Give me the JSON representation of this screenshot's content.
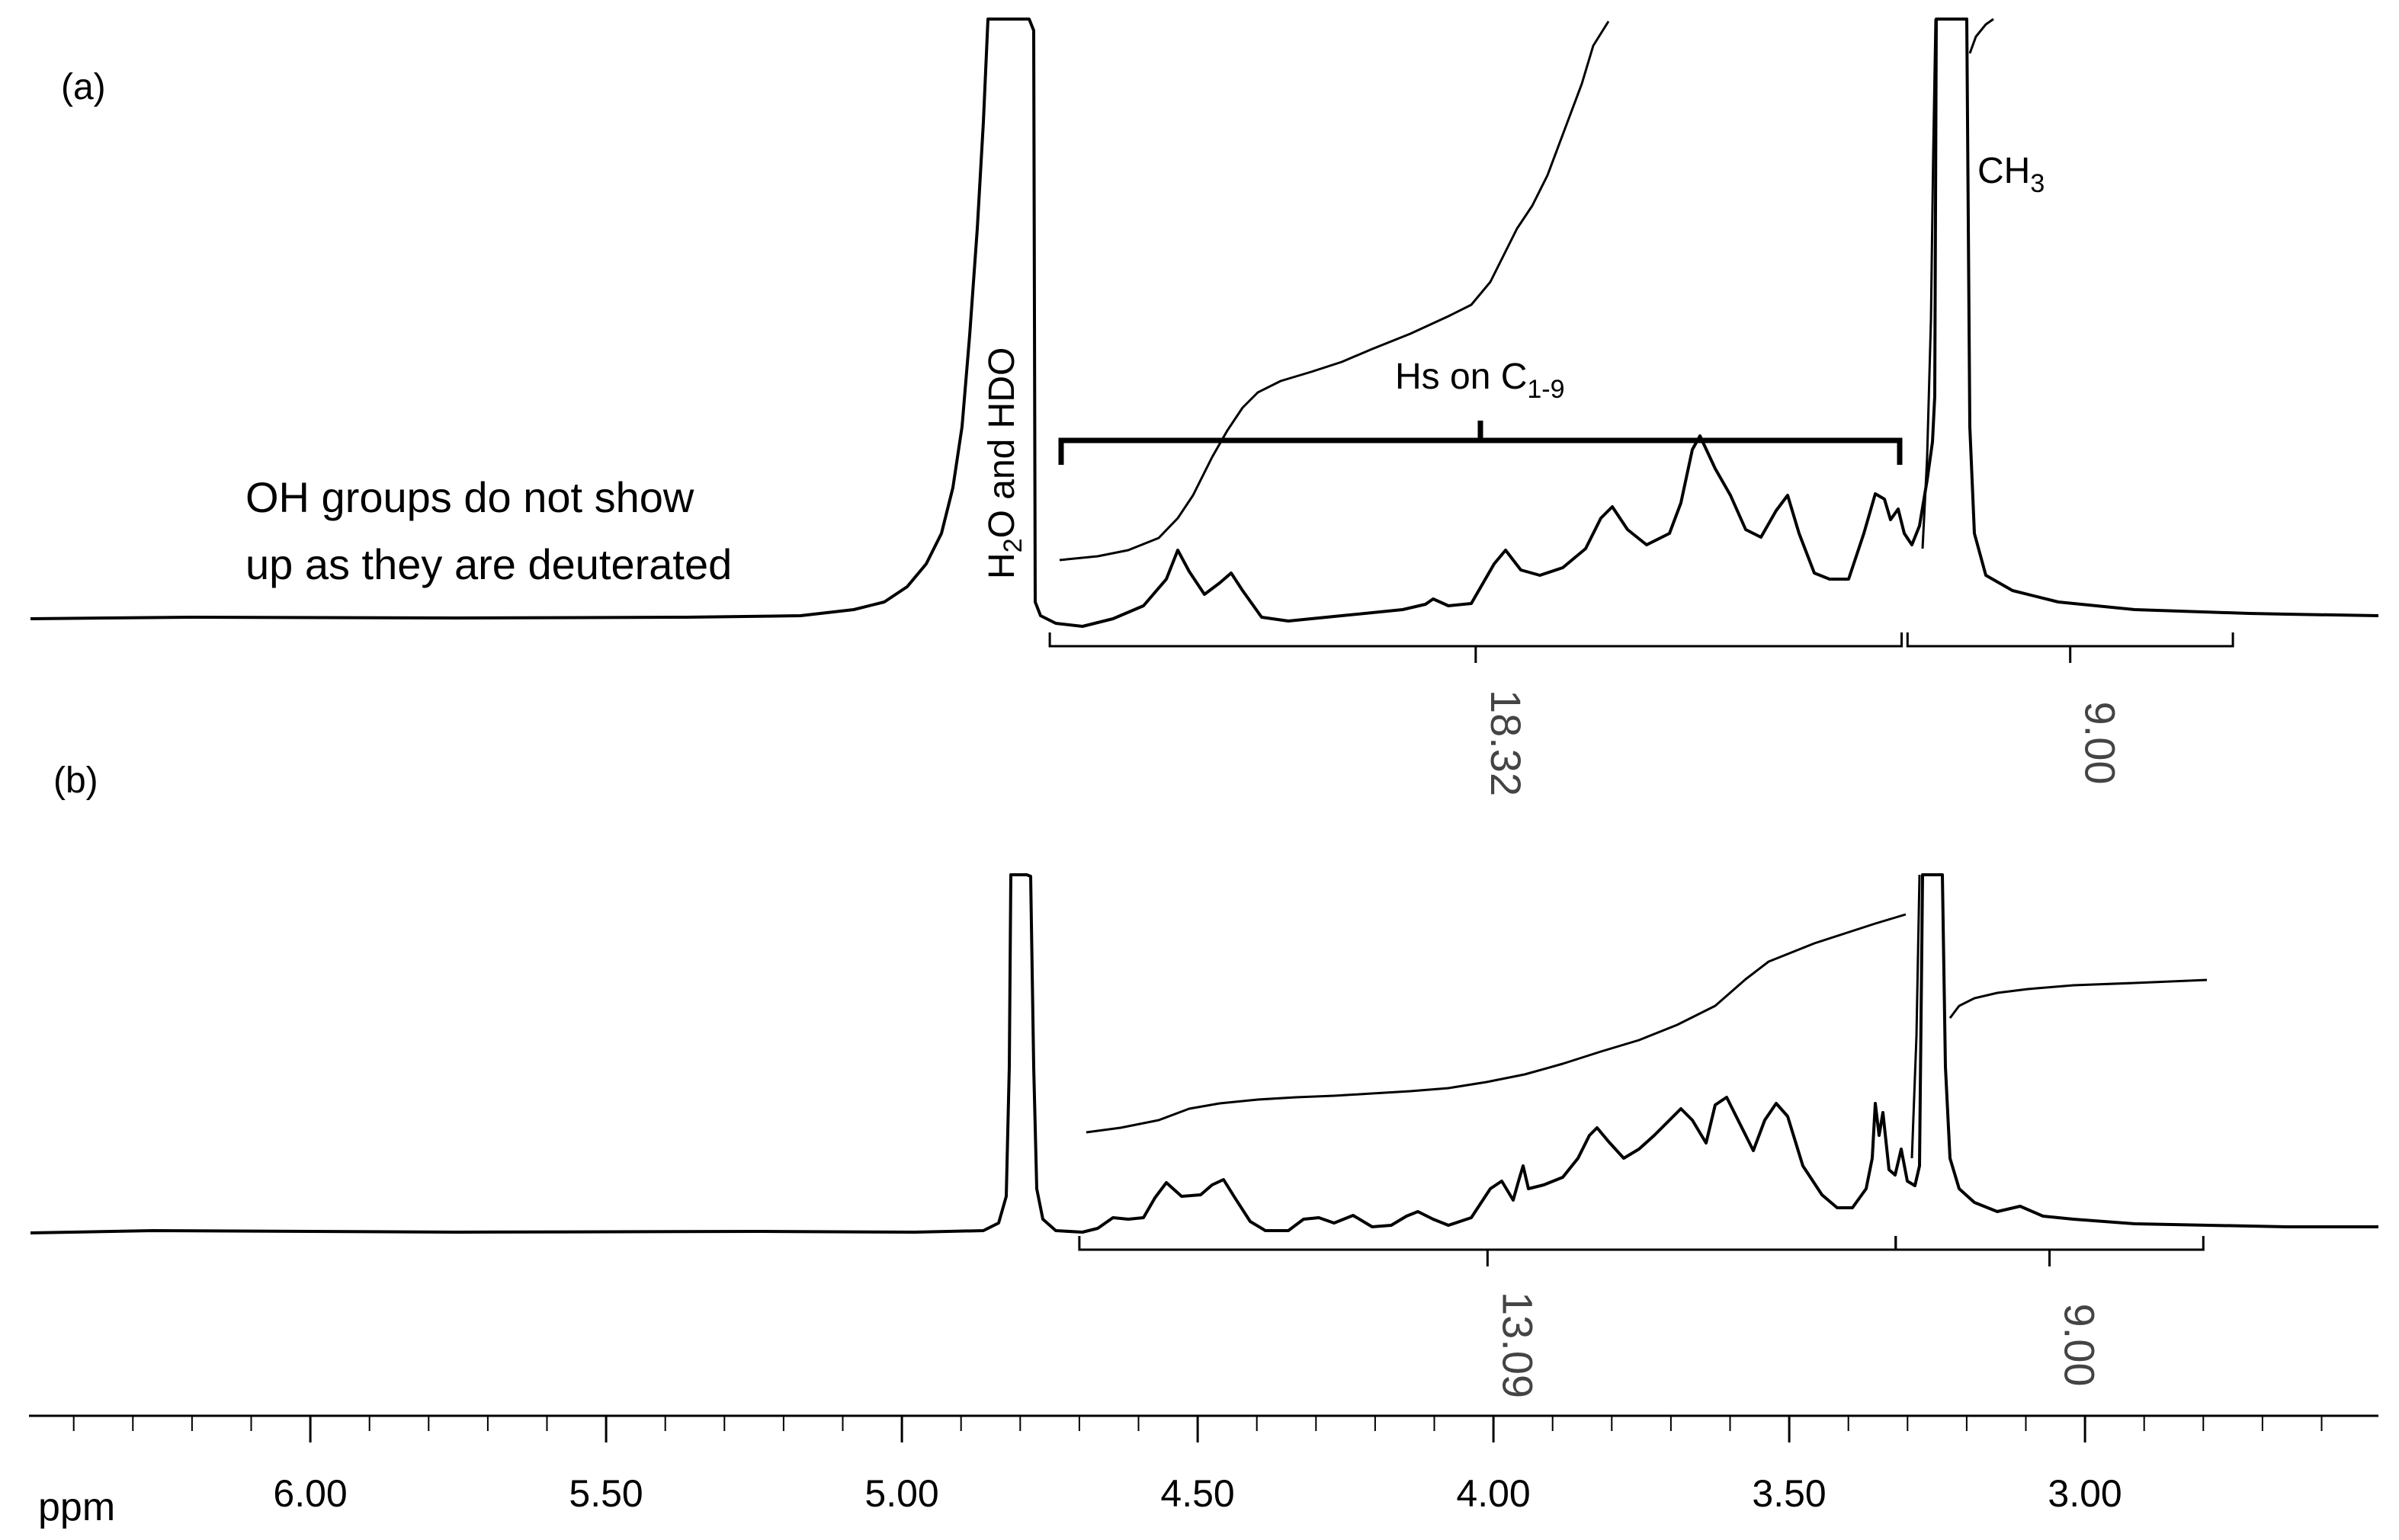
{
  "chart_data": [
    {
      "panel": "(a)",
      "type": "line",
      "annotations": {
        "water_peak": {
          "sub_pre": "H",
          "sub": "2",
          "post": "O and HDO"
        },
        "ring_protons": {
          "text": "Hs on C",
          "sub": "1-9"
        },
        "methyl": {
          "text": "CH",
          "sub": "3"
        },
        "oh_note": [
          "OH groups do not show",
          "up as they are deuterated"
        ]
      },
      "integrals": [
        {
          "value": "18.32",
          "from_ppm": 4.75,
          "to_ppm": 3.31
        },
        {
          "value": "9.00",
          "from_ppm": 3.3,
          "to_ppm": 2.75
        }
      ],
      "peaks_ppm": [
        4.56,
        4.47,
        4.13,
        3.99,
        3.84,
        3.69,
        3.53,
        3.37,
        3.24
      ],
      "truncated_peaks_ppm": [
        4.79,
        3.24
      ]
    },
    {
      "panel": "(b)",
      "type": "line",
      "integrals": [
        {
          "value": "13.09",
          "from_ppm": 4.7,
          "to_ppm": 3.32
        },
        {
          "value": "9.00",
          "from_ppm": 3.32,
          "to_ppm": 2.8
        }
      ],
      "peaks_ppm": [
        4.57,
        4.47,
        4.27,
        4.14,
        4.0,
        3.96,
        3.84,
        3.69,
        3.63,
        3.54,
        3.37,
        3.33
      ],
      "truncated_peaks_ppm": [
        4.81,
        3.24
      ]
    }
  ],
  "axis": {
    "unit_label": "ppm",
    "reversed": true,
    "range": [
      6.5,
      2.4
    ],
    "ticks": [
      "6.00",
      "5.50",
      "5.00",
      "4.50",
      "4.00",
      "3.50",
      "3.00"
    ],
    "tick_values": [
      6.0,
      5.5,
      5.0,
      4.5,
      4.0,
      3.5,
      3.0
    ]
  }
}
